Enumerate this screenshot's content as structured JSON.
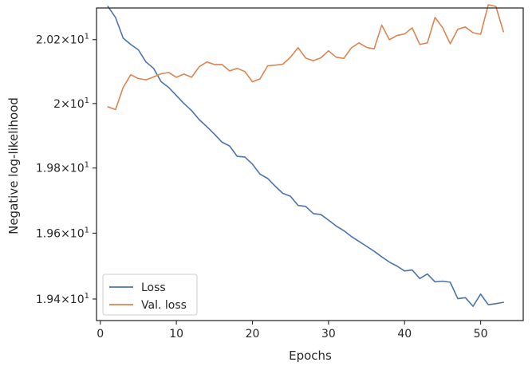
{
  "chart_data": {
    "type": "line",
    "title": "",
    "xlabel": "Epochs",
    "ylabel": "Negative log-likelihood",
    "xlim": [
      -0.5,
      55.6
    ],
    "ylim": [
      19.335,
      20.3
    ],
    "x_ticks": [
      0,
      10,
      20,
      30,
      40,
      50
    ],
    "y_ticks": [
      {
        "value": 19.4,
        "mantissa": "1.94",
        "exp": "1"
      },
      {
        "value": 19.6,
        "mantissa": "1.96",
        "exp": "1"
      },
      {
        "value": 19.8,
        "mantissa": "1.98",
        "exp": "1"
      },
      {
        "value": 20.0,
        "mantissa": "2",
        "exp": "1"
      },
      {
        "value": 20.2,
        "mantissa": "2.02",
        "exp": "1"
      }
    ],
    "y_scale": "log",
    "grid": false,
    "legend_position": "lower-left",
    "series": [
      {
        "name": "Loss",
        "color": "#4c72b0",
        "x": [
          1,
          2,
          3,
          4,
          5,
          6,
          7,
          8,
          9,
          10,
          11,
          12,
          13,
          14,
          15,
          16,
          17,
          18,
          19,
          20,
          21,
          22,
          23,
          24,
          25,
          26,
          27,
          28,
          29,
          30,
          31,
          32,
          33,
          34,
          35,
          36,
          37,
          38,
          39,
          40,
          41,
          42,
          43,
          44,
          45,
          46,
          47,
          48,
          49,
          50,
          51,
          52,
          53
        ],
        "values": [
          20.305,
          20.27,
          20.205,
          20.185,
          20.168,
          20.13,
          20.11,
          20.068,
          20.05,
          20.025,
          20.0,
          19.978,
          19.95,
          19.928,
          19.905,
          19.88,
          19.868,
          19.836,
          19.834,
          19.812,
          19.781,
          19.768,
          19.744,
          19.722,
          19.713,
          19.685,
          19.682,
          19.66,
          19.657,
          19.64,
          19.622,
          19.608,
          19.59,
          19.575,
          19.56,
          19.545,
          19.528,
          19.512,
          19.5,
          19.485,
          19.488,
          19.462,
          19.476,
          19.452,
          19.454,
          19.451,
          19.401,
          19.404,
          19.378,
          19.415,
          19.383,
          19.386,
          19.39
        ]
      },
      {
        "name": "Val. loss",
        "color": "#dd8452",
        "x": [
          1,
          2,
          3,
          4,
          5,
          6,
          7,
          8,
          9,
          10,
          11,
          12,
          13,
          14,
          15,
          16,
          17,
          18,
          19,
          20,
          21,
          22,
          23,
          24,
          25,
          26,
          27,
          28,
          29,
          30,
          31,
          32,
          33,
          34,
          35,
          36,
          37,
          38,
          39,
          40,
          41,
          42,
          43,
          44,
          45,
          46,
          47,
          48,
          49,
          50,
          51,
          52,
          53
        ],
        "values": [
          19.99,
          19.981,
          20.05,
          20.09,
          20.078,
          20.074,
          20.083,
          20.093,
          20.097,
          20.082,
          20.092,
          20.082,
          20.115,
          20.13,
          20.122,
          20.122,
          20.102,
          20.11,
          20.1,
          20.068,
          20.077,
          20.118,
          20.12,
          20.123,
          20.145,
          20.175,
          20.142,
          20.134,
          20.143,
          20.165,
          20.145,
          20.141,
          20.174,
          20.19,
          20.176,
          20.171,
          20.246,
          20.2,
          20.213,
          20.218,
          20.237,
          20.185,
          20.19,
          20.27,
          20.238,
          20.187,
          20.233,
          20.24,
          20.222,
          20.217,
          20.31,
          20.305,
          20.225
        ]
      }
    ]
  }
}
